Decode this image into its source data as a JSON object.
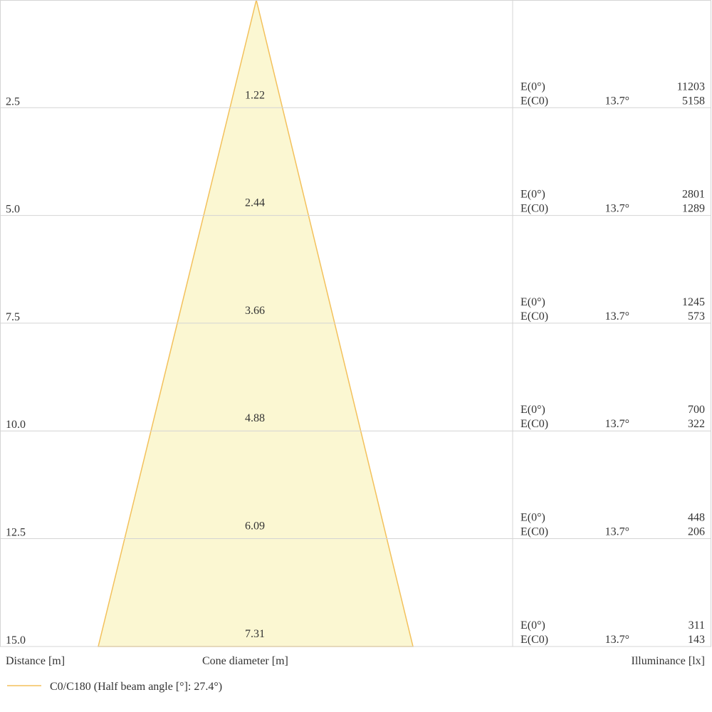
{
  "rows": [
    {
      "distance": "2.5",
      "diameter": "1.22",
      "e0_label": "E(0°)",
      "e0": "11203",
      "ec0_label": "E(C0)",
      "angle": "13.7°",
      "ec0": "5158"
    },
    {
      "distance": "5.0",
      "diameter": "2.44",
      "e0_label": "E(0°)",
      "e0": "2801",
      "ec0_label": "E(C0)",
      "angle": "13.7°",
      "ec0": "1289"
    },
    {
      "distance": "7.5",
      "diameter": "3.66",
      "e0_label": "E(0°)",
      "e0": "1245",
      "ec0_label": "E(C0)",
      "angle": "13.7°",
      "ec0": "573"
    },
    {
      "distance": "10.0",
      "diameter": "4.88",
      "e0_label": "E(0°)",
      "e0": "700",
      "ec0_label": "E(C0)",
      "angle": "13.7°",
      "ec0": "322"
    },
    {
      "distance": "12.5",
      "diameter": "6.09",
      "e0_label": "E(0°)",
      "e0": "448",
      "ec0_label": "E(C0)",
      "angle": "13.7°",
      "ec0": "206"
    },
    {
      "distance": "15.0",
      "diameter": "7.31",
      "e0_label": "E(0°)",
      "e0": "311",
      "ec0_label": "E(C0)",
      "angle": "13.7°",
      "ec0": "143"
    }
  ],
  "footer": {
    "distance": "Distance [m]",
    "diameter": "Cone diameter [m]",
    "illuminance": "Illuminance [lx]"
  },
  "legend": {
    "label": "C0/C180 (Half beam angle [°]: 27.4°)"
  }
}
